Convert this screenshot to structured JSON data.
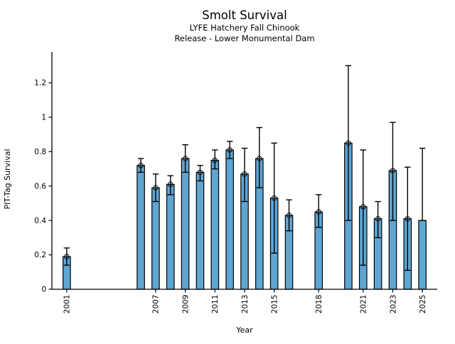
{
  "chart_data": {
    "type": "bar",
    "title": "Smolt Survival",
    "subtitle_line1": "LYFE Hatchery Fall Chinook",
    "subtitle_line2": "Release - Lower Monumental Dam",
    "xlabel": "Year",
    "ylabel": "PIT-Tag Survival",
    "xlim": [
      2000,
      2026
    ],
    "ylim": [
      0,
      1.38
    ],
    "yticks": [
      0,
      0.2,
      0.4,
      0.6,
      0.8,
      1,
      1.2
    ],
    "ytick_labels": [
      "0",
      "0.2",
      "0.4",
      "0.6",
      "0.8",
      "1",
      "1.2"
    ],
    "xticks": [
      2001,
      2007,
      2009,
      2011,
      2013,
      2015,
      2018,
      2021,
      2023,
      2025
    ],
    "grid": false,
    "legend": null,
    "bar_width_years": 0.5,
    "marker": "open-circle",
    "colors": {
      "bar_fill": "#5fa5d2",
      "bar_edge": "#000000",
      "error_bar": "#000000",
      "text": "#000000",
      "background": "#ffffff"
    },
    "series": [
      {
        "year": 2001,
        "value": 0.19,
        "ci_low": 0.14,
        "ci_high": 0.24,
        "marker": true
      },
      {
        "year": 2006,
        "value": 0.72,
        "ci_low": 0.68,
        "ci_high": 0.76,
        "marker": true
      },
      {
        "year": 2007,
        "value": 0.59,
        "ci_low": 0.51,
        "ci_high": 0.67,
        "marker": true
      },
      {
        "year": 2008,
        "value": 0.61,
        "ci_low": 0.55,
        "ci_high": 0.66,
        "marker": true
      },
      {
        "year": 2009,
        "value": 0.76,
        "ci_low": 0.68,
        "ci_high": 0.84,
        "marker": true
      },
      {
        "year": 2010,
        "value": 0.68,
        "ci_low": 0.63,
        "ci_high": 0.72,
        "marker": true
      },
      {
        "year": 2011,
        "value": 0.75,
        "ci_low": 0.7,
        "ci_high": 0.81,
        "marker": true
      },
      {
        "year": 2012,
        "value": 0.81,
        "ci_low": 0.76,
        "ci_high": 0.86,
        "marker": true
      },
      {
        "year": 2013,
        "value": 0.67,
        "ci_low": 0.51,
        "ci_high": 0.82,
        "marker": true
      },
      {
        "year": 2014,
        "value": 0.76,
        "ci_low": 0.59,
        "ci_high": 0.94,
        "marker": true
      },
      {
        "year": 2015,
        "value": 0.53,
        "ci_low": 0.21,
        "ci_high": 0.85,
        "marker": true
      },
      {
        "year": 2016,
        "value": 0.43,
        "ci_low": 0.34,
        "ci_high": 0.52,
        "marker": true
      },
      {
        "year": 2018,
        "value": 0.45,
        "ci_low": 0.36,
        "ci_high": 0.55,
        "marker": true
      },
      {
        "year": 2020,
        "value": 0.85,
        "ci_low": 0.4,
        "ci_high": 1.3,
        "marker": true
      },
      {
        "year": 2021,
        "value": 0.48,
        "ci_low": 0.14,
        "ci_high": 0.81,
        "marker": true
      },
      {
        "year": 2022,
        "value": 0.41,
        "ci_low": 0.3,
        "ci_high": 0.51,
        "marker": true
      },
      {
        "year": 2023,
        "value": 0.69,
        "ci_low": 0.4,
        "ci_high": 0.97,
        "marker": true
      },
      {
        "year": 2024,
        "value": 0.41,
        "ci_low": 0.11,
        "ci_high": 0.71,
        "marker": true
      },
      {
        "year": 2025,
        "value": 0.4,
        "ci_low": 0.4,
        "ci_high": 0.82,
        "marker": false
      }
    ]
  }
}
